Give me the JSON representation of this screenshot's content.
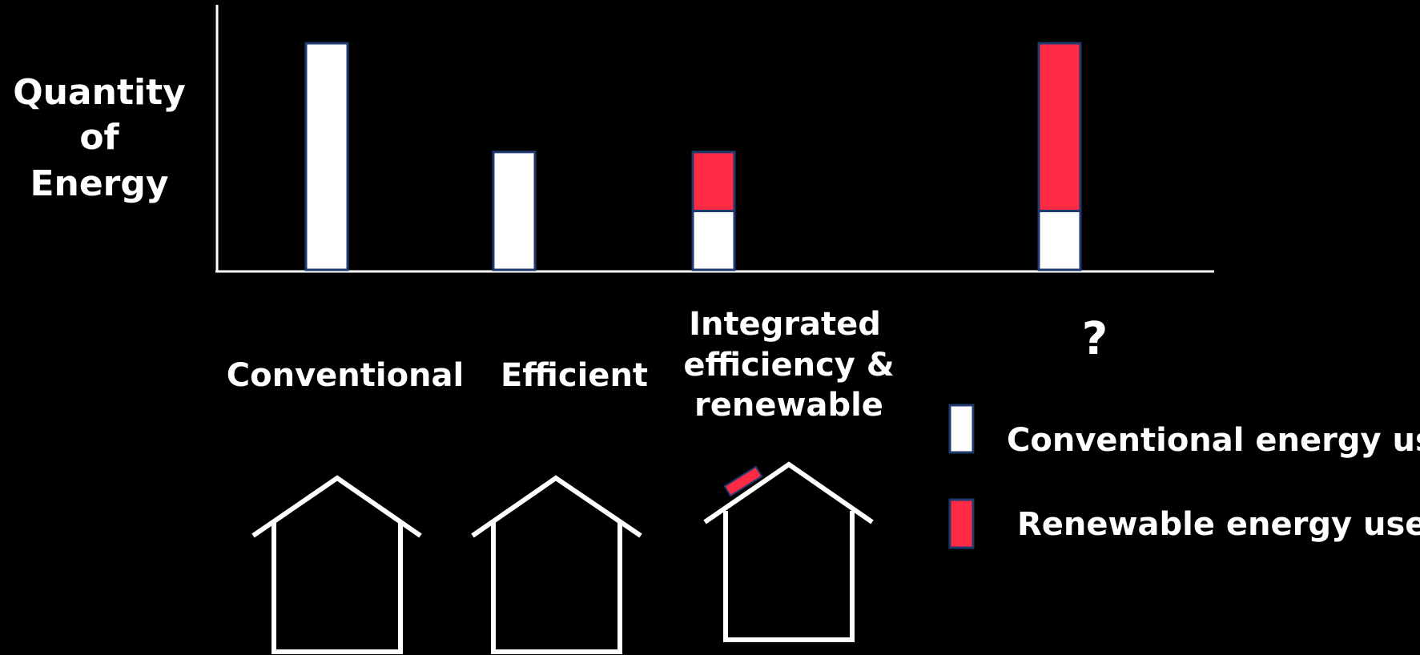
{
  "chart_data": {
    "type": "bar",
    "stacked": true,
    "ylabel": [
      "Quantity",
      "of",
      "Energy"
    ],
    "xlabel": "",
    "ylim": [
      0,
      100
    ],
    "grid": false,
    "categories": [
      {
        "lines": [
          "Conventional"
        ]
      },
      {
        "lines": [
          "Efficient"
        ]
      },
      {
        "lines": [
          "Integrated",
          "efficiency &",
          "renewable"
        ]
      },
      {
        "lines": [
          "?"
        ]
      }
    ],
    "series": [
      {
        "name": "Conventional energy use",
        "color": "#ffffff",
        "values": [
          100,
          52,
          26,
          26
        ]
      },
      {
        "name": "Renewable energy use",
        "color": "#ff2a44",
        "values": [
          0,
          0,
          26,
          74
        ]
      }
    ],
    "legend": {
      "placement": "bottom-right",
      "items": [
        "Conventional energy use",
        "Renewable energy use"
      ]
    },
    "icons": [
      "house-icon",
      "house-icon",
      "house-with-solar-panel-icon"
    ]
  },
  "colors": {
    "background": "#000000",
    "conventional": "#ffffff",
    "renewable": "#ff2a44",
    "bar_outline": "#1f3a6e"
  }
}
